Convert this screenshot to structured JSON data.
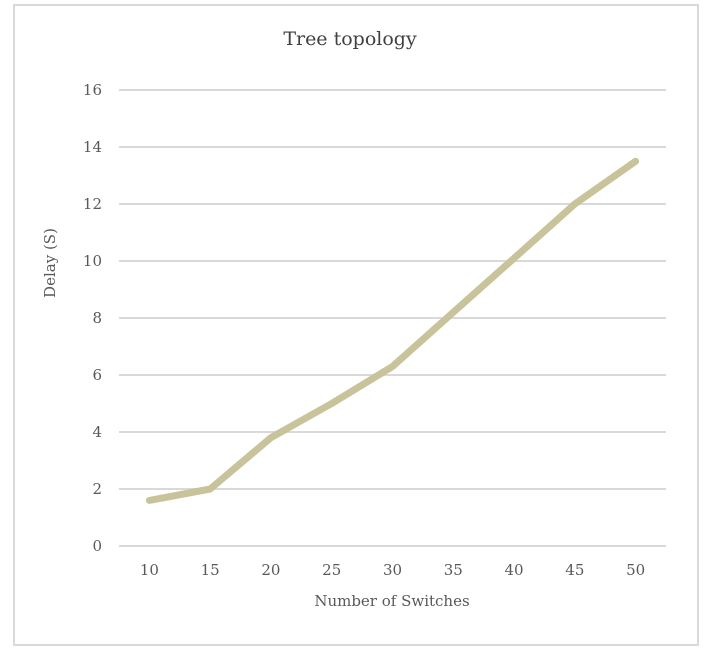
{
  "chart_data": {
    "type": "line",
    "title": "Tree topology",
    "xlabel": "Number of Switches",
    "ylabel": "Delay (S)",
    "categories": [
      "10",
      "15",
      "20",
      "25",
      "30",
      "35",
      "40",
      "45",
      "50"
    ],
    "series": [
      {
        "values": [
          1.6,
          2.0,
          3.8,
          5.0,
          6.3,
          8.2,
          10.1,
          12.0,
          13.5
        ],
        "color": "#c9c39c"
      }
    ],
    "ylim": [
      0,
      16
    ],
    "yticks": [
      "0",
      "2",
      "4",
      "6",
      "8",
      "10",
      "12",
      "14",
      "16"
    ],
    "grid": true,
    "gridColor": "#d9d9d9",
    "legend": "none"
  }
}
